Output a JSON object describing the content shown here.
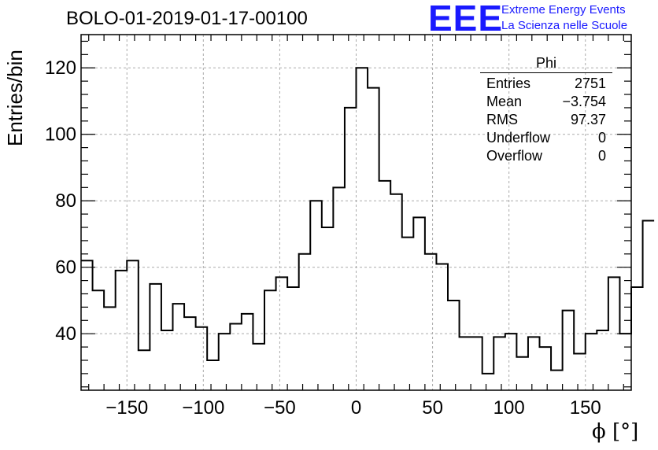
{
  "header": {
    "title": "BOLO-01-2019-01-17-00100",
    "logo_text": "EEE",
    "logo_line1": "Extreme Energy Events",
    "logo_line2": "La Scienza nelle Scuole"
  },
  "stats_box": {
    "title": "Phi",
    "rows": [
      {
        "key": "Entries",
        "value": "2751"
      },
      {
        "key": "Mean",
        "value": "−3.754"
      },
      {
        "key": "RMS",
        "value": "97.37"
      },
      {
        "key": "Underflow",
        "value": "0"
      },
      {
        "key": "Overflow",
        "value": "0"
      }
    ]
  },
  "colors": {
    "accent": "#1a1aff",
    "line": "#000000",
    "grid": "#aaaaaa"
  },
  "chart_data": {
    "type": "histogram",
    "xlabel": "ϕ [°]",
    "ylabel": "Entries/bin",
    "xlim": [
      -180,
      180
    ],
    "ylim": [
      23,
      130
    ],
    "bin_width": 7.5,
    "bin_edges_start": -180,
    "values": [
      62,
      53,
      48,
      59,
      62,
      35,
      55,
      41,
      49,
      45,
      42,
      32,
      40,
      43,
      46,
      37,
      53,
      57,
      54,
      64,
      80,
      72,
      84,
      108,
      120,
      114,
      86,
      82,
      69,
      75,
      64,
      61,
      50,
      39,
      39,
      28,
      39,
      40,
      33,
      39,
      36,
      29,
      47,
      34,
      40,
      41,
      57,
      40,
      54,
      74
    ],
    "x_ticks": [
      -150,
      -100,
      -50,
      0,
      50,
      100,
      150
    ],
    "x_tick_labels": [
      "−150",
      "−100",
      "−50",
      "0",
      "50",
      "100",
      "150"
    ],
    "y_ticks": [
      40,
      60,
      80,
      100,
      120
    ],
    "y_tick_labels": [
      "40",
      "60",
      "80",
      "100",
      "120"
    ],
    "grid": true
  }
}
